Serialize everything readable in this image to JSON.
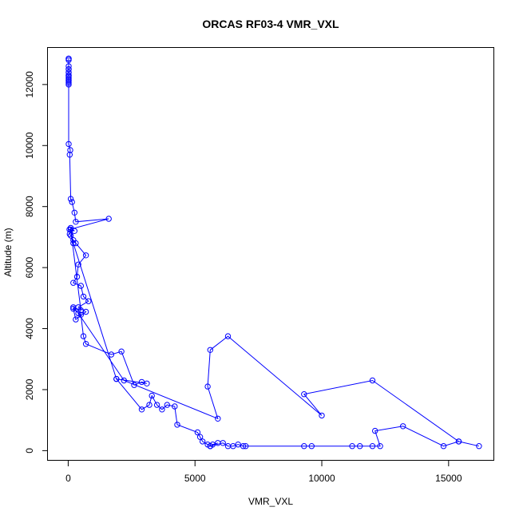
{
  "chart_data": {
    "type": "line",
    "title": "ORCAS RF03-4 VMR_VXL",
    "xlabel": "VMR_VXL",
    "ylabel": "Altitude (m)",
    "xlim": [
      -800,
      16800
    ],
    "ylim": [
      -330,
      13200
    ],
    "xticks": [
      0,
      5000,
      10000,
      15000
    ],
    "yticks": [
      0,
      2000,
      4000,
      6000,
      8000,
      10000,
      12000
    ],
    "grid": false,
    "legend": "none",
    "color": "#0000ff",
    "markers": "open-circle",
    "series": [
      {
        "x": [
          20,
          20,
          20,
          20,
          20,
          20,
          20,
          20,
          20,
          20,
          20,
          20,
          20,
          20,
          20,
          20,
          20,
          20,
          80,
          60,
          100,
          150,
          250,
          300,
          1600,
          50,
          250,
          100,
          60,
          100,
          200,
          300,
          700,
          400,
          350,
          200,
          500,
          600,
          800,
          400,
          700,
          300,
          200,
          500,
          600,
          700,
          1700,
          2100,
          2600,
          2900,
          3100,
          1900,
          2900,
          3200,
          3300,
          3500,
          3700,
          3900,
          4200,
          4300,
          5100,
          5200,
          5300,
          5500,
          5600,
          5700,
          5900,
          5600,
          6100,
          6300,
          6500,
          6700,
          6900,
          7000,
          9300,
          9600,
          11200,
          11500,
          12000,
          12300,
          12100,
          13200,
          14800,
          15400,
          16200,
          15400,
          12000,
          9300,
          10000,
          6300,
          5600,
          5500,
          5900,
          2200,
          400,
          200,
          500,
          100,
          200,
          1900
        ],
        "y": [
          12850,
          12850,
          12800,
          12600,
          12500,
          12400,
          12300,
          12250,
          12200,
          12150,
          12100,
          12000,
          12050,
          12150,
          12300,
          12400,
          12500,
          10050,
          9850,
          9700,
          8250,
          8150,
          7800,
          7500,
          7600,
          7250,
          7200,
          7300,
          7100,
          7050,
          6900,
          6800,
          6400,
          6100,
          5700,
          5500,
          5400,
          5050,
          4900,
          4700,
          4550,
          4300,
          4650,
          4450,
          3750,
          3500,
          3150,
          3250,
          2150,
          2250,
          2200,
          2350,
          1350,
          1500,
          1800,
          1500,
          1350,
          1500,
          1450,
          850,
          600,
          450,
          300,
          200,
          150,
          200,
          250,
          150,
          250,
          150,
          150,
          200,
          150,
          150,
          150,
          150,
          150,
          150,
          150,
          150,
          650,
          800,
          150,
          300,
          150,
          300,
          2300,
          1850,
          1150,
          3750,
          3300,
          2100,
          1050,
          2300,
          4500,
          4700,
          4600,
          7250,
          6800,
          2350
        ]
      }
    ]
  }
}
